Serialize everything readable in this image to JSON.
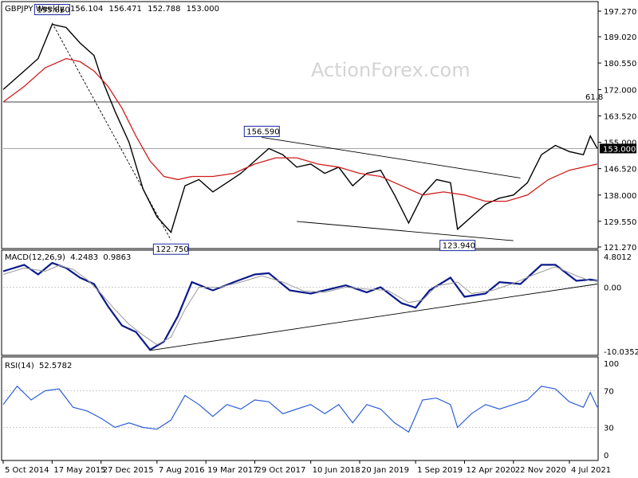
{
  "chart_data": [
    {
      "type": "bar",
      "panel": "price",
      "symbol": "GBPJPY",
      "timeframe": "Weekly",
      "ohlc": [
        "156.104",
        "156.471",
        "152.788",
        "153.000"
      ],
      "watermark": "ActionForex.com",
      "last_price": "153.000",
      "ylim": [
        121.27,
        197.27
      ],
      "yticks": [
        "197.270",
        "189.020",
        "180.550",
        "172.000",
        "163.520",
        "155.000",
        "146.520",
        "138.000",
        "129.550",
        "121.270"
      ],
      "fib_level": {
        "label": "61.8",
        "value": 168.0
      },
      "ref_level": 153.0,
      "annotations": [
        {
          "label": "195.860",
          "value": 195.86,
          "x": "2015-05"
        },
        {
          "label": "156.590",
          "value": 156.59,
          "x": "2017-11"
        },
        {
          "label": "122.750",
          "value": 122.75,
          "x": "2016-10"
        },
        {
          "label": "123.940",
          "value": 123.94,
          "x": "2020-03"
        }
      ],
      "trendlines": [
        {
          "from": [
            "2015-05",
            193.5
          ],
          "to": [
            "2016-10",
            123.5
          ]
        },
        {
          "from": [
            "2017-11",
            156.6
          ],
          "to": [
            "2020-12",
            143.5
          ]
        },
        {
          "from": [
            "2018-04",
            129.5
          ],
          "to": [
            "2020-11",
            123.3
          ]
        }
      ],
      "series": [
        {
          "kind": "price",
          "color": "#000000",
          "points": [
            [
              "2014-10",
              172
            ],
            [
              "2015-01",
              178
            ],
            [
              "2015-03",
              182
            ],
            [
              "2015-05",
              193
            ],
            [
              "2015-07",
              192
            ],
            [
              "2015-09",
              187
            ],
            [
              "2015-11",
              183
            ],
            [
              "2015-12",
              176
            ],
            [
              "2016-02",
              165
            ],
            [
              "2016-04",
              155
            ],
            [
              "2016-06",
              140
            ],
            [
              "2016-08",
              131
            ],
            [
              "2016-10",
              126
            ],
            [
              "2016-12",
              141
            ],
            [
              "2017-02",
              143
            ],
            [
              "2017-04",
              139
            ],
            [
              "2017-06",
              142
            ],
            [
              "2017-08",
              145
            ],
            [
              "2017-10",
              149
            ],
            [
              "2017-12",
              153
            ],
            [
              "2018-02",
              151
            ],
            [
              "2018-04",
              147
            ],
            [
              "2018-06",
              148
            ],
            [
              "2018-08",
              145
            ],
            [
              "2018-10",
              147
            ],
            [
              "2018-12",
              141
            ],
            [
              "2019-02",
              145
            ],
            [
              "2019-04",
              146
            ],
            [
              "2019-06",
              138
            ],
            [
              "2019-08",
              129
            ],
            [
              "2019-10",
              138
            ],
            [
              "2019-12",
              143
            ],
            [
              "2020-02",
              142
            ],
            [
              "2020-03",
              127
            ],
            [
              "2020-05",
              131
            ],
            [
              "2020-07",
              135
            ],
            [
              "2020-09",
              137
            ],
            [
              "2020-11",
              138
            ],
            [
              "2021-01",
              142
            ],
            [
              "2021-03",
              151
            ],
            [
              "2021-05",
              154
            ],
            [
              "2021-07",
              152
            ],
            [
              "2021-09",
              151
            ],
            [
              "2021-10",
              157
            ],
            [
              "2021-11",
              153
            ]
          ]
        },
        {
          "kind": "moving-average",
          "color": "#d01c1c",
          "points": [
            [
              "2014-10",
              168
            ],
            [
              "2015-01",
              173
            ],
            [
              "2015-04",
              179
            ],
            [
              "2015-07",
              182
            ],
            [
              "2015-09",
              181
            ],
            [
              "2015-11",
              178
            ],
            [
              "2016-01",
              173
            ],
            [
              "2016-03",
              166
            ],
            [
              "2016-05",
              157
            ],
            [
              "2016-07",
              149
            ],
            [
              "2016-09",
              144
            ],
            [
              "2016-11",
              143
            ],
            [
              "2017-01",
              144
            ],
            [
              "2017-04",
              144
            ],
            [
              "2017-07",
              145
            ],
            [
              "2017-10",
              148
            ],
            [
              "2018-01",
              150
            ],
            [
              "2018-04",
              150
            ],
            [
              "2018-07",
              148
            ],
            [
              "2018-10",
              147
            ],
            [
              "2019-01",
              145
            ],
            [
              "2019-04",
              144
            ],
            [
              "2019-07",
              141
            ],
            [
              "2019-10",
              138
            ],
            [
              "2020-01",
              139
            ],
            [
              "2020-04",
              138
            ],
            [
              "2020-07",
              136
            ],
            [
              "2020-10",
              136
            ],
            [
              "2021-01",
              138
            ],
            [
              "2021-04",
              143
            ],
            [
              "2021-07",
              146
            ],
            [
              "2021-09",
              147
            ],
            [
              "2021-11",
              148
            ]
          ]
        }
      ]
    },
    {
      "type": "line",
      "panel": "macd",
      "title": "MACD(12,26,9)",
      "values_text": [
        "4.2483",
        "0.9863"
      ],
      "ylim": [
        -10.0352,
        4.8012
      ],
      "yticks": [
        "4.8012",
        "0.00",
        "-10.0352"
      ],
      "trendlines": [
        {
          "from": [
            "2016-07",
            -9.9
          ],
          "to": [
            "2021-11",
            0.5
          ]
        }
      ],
      "series": [
        {
          "kind": "macd",
          "color": "#0a1a8c",
          "points": [
            [
              "2014-10",
              2.5
            ],
            [
              "2015-01",
              3.5
            ],
            [
              "2015-03",
              2.0
            ],
            [
              "2015-05",
              3.8
            ],
            [
              "2015-07",
              3.0
            ],
            [
              "2015-09",
              1.5
            ],
            [
              "2015-11",
              0.5
            ],
            [
              "2016-01",
              -3.0
            ],
            [
              "2016-03",
              -6.0
            ],
            [
              "2016-05",
              -7.0
            ],
            [
              "2016-07",
              -9.8
            ],
            [
              "2016-09",
              -8.5
            ],
            [
              "2016-11",
              -4.5
            ],
            [
              "2017-01",
              0.8
            ],
            [
              "2017-04",
              -0.5
            ],
            [
              "2017-07",
              0.8
            ],
            [
              "2017-10",
              2.0
            ],
            [
              "2017-12",
              2.2
            ],
            [
              "2018-03",
              -0.5
            ],
            [
              "2018-06",
              -1.0
            ],
            [
              "2018-08",
              -0.5
            ],
            [
              "2018-11",
              0.3
            ],
            [
              "2019-02",
              -0.8
            ],
            [
              "2019-04",
              0.0
            ],
            [
              "2019-07",
              -2.5
            ],
            [
              "2019-09",
              -3.2
            ],
            [
              "2019-11",
              -0.5
            ],
            [
              "2020-02",
              1.5
            ],
            [
              "2020-04",
              -1.5
            ],
            [
              "2020-07",
              -1.0
            ],
            [
              "2020-09",
              0.8
            ],
            [
              "2020-12",
              0.5
            ],
            [
              "2021-03",
              3.5
            ],
            [
              "2021-05",
              3.5
            ],
            [
              "2021-08",
              1.0
            ],
            [
              "2021-10",
              1.2
            ],
            [
              "2021-11",
              1.0
            ]
          ]
        },
        {
          "kind": "signal",
          "color": "#9a9a9a",
          "points": [
            [
              "2014-10",
              2.0
            ],
            [
              "2015-01",
              3.0
            ],
            [
              "2015-04",
              2.5
            ],
            [
              "2015-06",
              3.4
            ],
            [
              "2015-08",
              2.8
            ],
            [
              "2015-10",
              1.2
            ],
            [
              "2015-12",
              -1.0
            ],
            [
              "2016-02",
              -3.5
            ],
            [
              "2016-04",
              -5.8
            ],
            [
              "2016-06",
              -7.5
            ],
            [
              "2016-08",
              -9.0
            ],
            [
              "2016-10",
              -7.8
            ],
            [
              "2016-12",
              -3.5
            ],
            [
              "2017-02",
              0.0
            ],
            [
              "2017-05",
              0.0
            ],
            [
              "2017-08",
              0.8
            ],
            [
              "2017-11",
              1.8
            ],
            [
              "2018-02",
              0.8
            ],
            [
              "2018-05",
              -0.6
            ],
            [
              "2018-08",
              -0.8
            ],
            [
              "2018-11",
              0.0
            ],
            [
              "2019-02",
              -0.3
            ],
            [
              "2019-05",
              -0.5
            ],
            [
              "2019-08",
              -2.4
            ],
            [
              "2019-10",
              -2.0
            ],
            [
              "2019-12",
              0.2
            ],
            [
              "2020-03",
              0.8
            ],
            [
              "2020-05",
              -1.0
            ],
            [
              "2020-08",
              -0.5
            ],
            [
              "2020-11",
              0.6
            ],
            [
              "2021-02",
              2.0
            ],
            [
              "2021-05",
              3.2
            ],
            [
              "2021-08",
              1.8
            ],
            [
              "2021-10",
              1.0
            ],
            [
              "2021-11",
              1.0
            ]
          ]
        }
      ]
    },
    {
      "type": "line",
      "panel": "rsi",
      "title": "RSI(14)",
      "value_text": "52.5782",
      "ylim": [
        0,
        100
      ],
      "yticks": [
        "100",
        "70",
        "30",
        "0"
      ],
      "levels": [
        70,
        30
      ],
      "series": [
        {
          "kind": "rsi",
          "color": "#2e5fd6",
          "points": [
            [
              "2014-10",
              55
            ],
            [
              "2014-12",
              75
            ],
            [
              "2015-02",
              60
            ],
            [
              "2015-04",
              70
            ],
            [
              "2015-06",
              72
            ],
            [
              "2015-08",
              52
            ],
            [
              "2015-10",
              48
            ],
            [
              "2015-12",
              40
            ],
            [
              "2016-02",
              30
            ],
            [
              "2016-04",
              35
            ],
            [
              "2016-06",
              30
            ],
            [
              "2016-08",
              28
            ],
            [
              "2016-10",
              38
            ],
            [
              "2016-12",
              65
            ],
            [
              "2017-02",
              55
            ],
            [
              "2017-04",
              42
            ],
            [
              "2017-06",
              55
            ],
            [
              "2017-08",
              50
            ],
            [
              "2017-10",
              60
            ],
            [
              "2017-12",
              58
            ],
            [
              "2018-02",
              45
            ],
            [
              "2018-04",
              50
            ],
            [
              "2018-06",
              55
            ],
            [
              "2018-08",
              45
            ],
            [
              "2018-10",
              55
            ],
            [
              "2018-12",
              35
            ],
            [
              "2019-02",
              55
            ],
            [
              "2019-04",
              50
            ],
            [
              "2019-06",
              35
            ],
            [
              "2019-08",
              25
            ],
            [
              "2019-10",
              60
            ],
            [
              "2019-12",
              62
            ],
            [
              "2020-02",
              55
            ],
            [
              "2020-03",
              30
            ],
            [
              "2020-05",
              45
            ],
            [
              "2020-07",
              55
            ],
            [
              "2020-09",
              50
            ],
            [
              "2020-11",
              55
            ],
            [
              "2021-01",
              60
            ],
            [
              "2021-03",
              75
            ],
            [
              "2021-05",
              72
            ],
            [
              "2021-07",
              58
            ],
            [
              "2021-09",
              52
            ],
            [
              "2021-10",
              68
            ],
            [
              "2021-11",
              52
            ]
          ]
        }
      ]
    }
  ],
  "x_axis": {
    "ticks": [
      {
        "label": "5 Oct 2014",
        "date": "2014-10"
      },
      {
        "label": "17 May 2015",
        "date": "2015-05"
      },
      {
        "label": "27 Dec 2015",
        "date": "2015-12"
      },
      {
        "label": "7 Aug 2016",
        "date": "2016-08"
      },
      {
        "label": "19 Mar 2017",
        "date": "2017-03"
      },
      {
        "label": "29 Oct 2017",
        "date": "2017-10"
      },
      {
        "label": "10 Jun 2018",
        "date": "2018-06"
      },
      {
        "label": "20 Jan 2019",
        "date": "2019-01"
      },
      {
        "label": "1 Sep 2019",
        "date": "2019-09"
      },
      {
        "label": "12 Apr 2020",
        "date": "2020-04"
      },
      {
        "label": "22 Nov 2020",
        "date": "2020-11"
      },
      {
        "label": "4 Jul 2021",
        "date": "2021-07"
      }
    ]
  }
}
